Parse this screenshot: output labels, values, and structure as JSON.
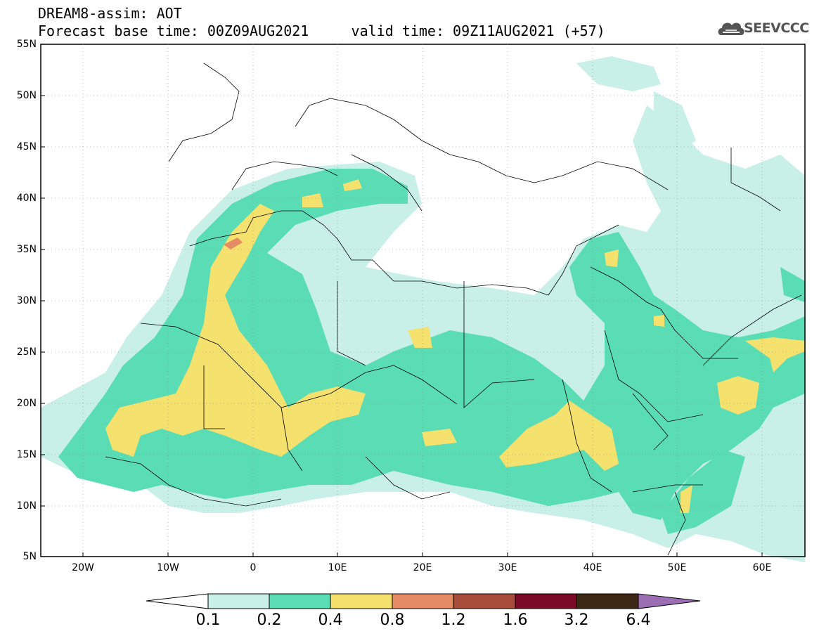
{
  "title": {
    "line1": "DREAM8-assim: AOT",
    "base_label": "Forecast base time:",
    "base_time": "00Z09AUG2021",
    "valid_label": "valid time:",
    "valid_time": "09Z11AUG2021 (+57)"
  },
  "logo": {
    "text": "SEEVCCC",
    "icon": "cloud-icon"
  },
  "map": {
    "lat_labels": [
      "55N",
      "50N",
      "45N",
      "40N",
      "35N",
      "30N",
      "25N",
      "20N",
      "15N",
      "10N",
      "5N"
    ],
    "lon_labels": [
      "20W",
      "10W",
      "0",
      "10E",
      "20E",
      "30E",
      "40E",
      "50E",
      "60E"
    ],
    "lon_range": [
      -25,
      65
    ],
    "lat_range": [
      5,
      55
    ]
  },
  "colorbar": {
    "labels": [
      "0.1",
      "0.2",
      "0.4",
      "0.8",
      "1.2",
      "1.6",
      "3.2",
      "6.4"
    ],
    "colors": [
      "#ffffff",
      "#c8f0e8",
      "#5adcb4",
      "#f5e16e",
      "#e68c64",
      "#a84c3c",
      "#7a0a28",
      "#3c2814",
      "#9b6eb4"
    ]
  }
}
